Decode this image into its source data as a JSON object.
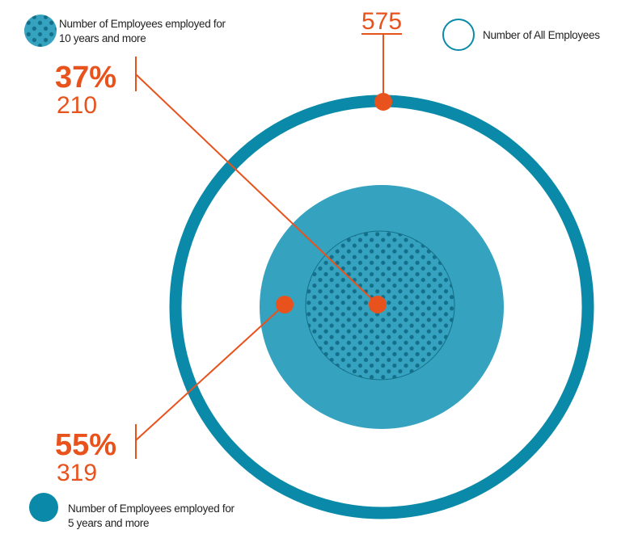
{
  "legend": [
    {
      "lines": [
        "Number of Employees employed for",
        "10 years and more"
      ]
    },
    {
      "lines": [
        "Number of All Employees"
      ]
    },
    {
      "lines": [
        "Number of Employees employed for",
        "5 years and more"
      ]
    }
  ],
  "callouts": {
    "all": {
      "count": "575"
    },
    "ten_years": {
      "percent": "37%",
      "count": "210"
    },
    "five_years": {
      "percent": "55%",
      "count": "319"
    }
  }
}
